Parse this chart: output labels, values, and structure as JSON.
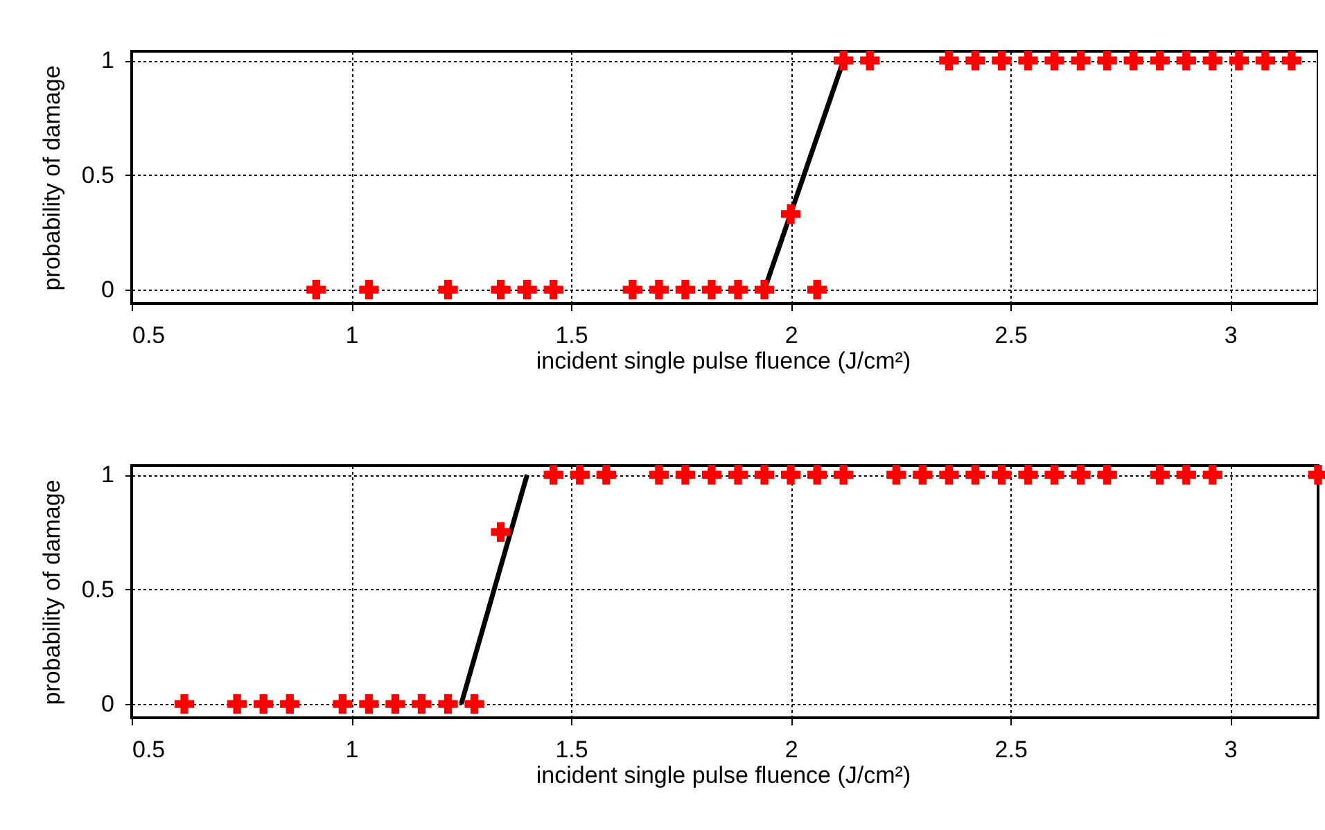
{
  "chart_data": [
    {
      "type": "scatter",
      "xlabel": "incident single pulse fluence (J/cm²)",
      "ylabel": "probability of damage",
      "xlim": [
        0.5,
        3.2
      ],
      "ylim": [
        -0.06,
        1.04
      ],
      "xticks": [
        0.5,
        1,
        1.5,
        2,
        2.5,
        3
      ],
      "yticks": [
        0,
        0.5,
        1
      ],
      "grid": true,
      "series": [
        {
          "marker": "cross",
          "color": "#ff0000",
          "x": [
            0.92,
            1.04,
            1.22,
            1.34,
            1.4,
            1.46,
            1.64,
            1.7,
            1.76,
            1.82,
            1.88,
            1.94,
            2.06,
            2.0,
            2.12,
            2.18,
            2.36,
            2.42,
            2.48,
            2.54,
            2.6,
            2.66,
            2.72,
            2.78,
            2.84,
            2.9,
            2.96,
            3.02,
            3.08,
            3.14
          ],
          "values": [
            0,
            0,
            0,
            0,
            0,
            0,
            0,
            0,
            0,
            0,
            0,
            0,
            0,
            0.33,
            1,
            1,
            1,
            1,
            1,
            1,
            1,
            1,
            1,
            1,
            1,
            1,
            1,
            1,
            1,
            1
          ]
        },
        {
          "type": "line",
          "color": "#000000",
          "line_style": "solid",
          "x": [
            1.94,
            2.12
          ],
          "values": [
            0,
            1
          ]
        }
      ]
    },
    {
      "type": "scatter",
      "xlabel": "incident single pulse fluence (J/cm²)",
      "ylabel": "probability of damage",
      "xlim": [
        0.5,
        3.2
      ],
      "ylim": [
        -0.06,
        1.04
      ],
      "xticks": [
        0.5,
        1,
        1.5,
        2,
        2.5,
        3
      ],
      "yticks": [
        0,
        0.5,
        1
      ],
      "grid": true,
      "series": [
        {
          "marker": "cross",
          "color": "#ff0000",
          "x": [
            0.62,
            0.74,
            0.8,
            0.86,
            0.98,
            1.04,
            1.1,
            1.16,
            1.22,
            1.28,
            1.34,
            1.46,
            1.52,
            1.58,
            1.7,
            1.76,
            1.82,
            1.88,
            1.94,
            2.0,
            2.06,
            2.12,
            2.24,
            2.3,
            2.36,
            2.42,
            2.48,
            2.54,
            2.6,
            2.66,
            2.72,
            2.84,
            2.9,
            2.96,
            3.2
          ],
          "values": [
            0,
            0,
            0,
            0,
            0,
            0,
            0,
            0,
            0,
            0,
            0.75,
            1,
            1,
            1,
            1,
            1,
            1,
            1,
            1,
            1,
            1,
            1,
            1,
            1,
            1,
            1,
            1,
            1,
            1,
            1,
            1,
            1,
            1,
            1,
            1
          ]
        },
        {
          "type": "line",
          "color": "#000000",
          "line_style": "solid",
          "x": [
            1.25,
            1.4
          ],
          "values": [
            0,
            1
          ]
        }
      ]
    }
  ]
}
